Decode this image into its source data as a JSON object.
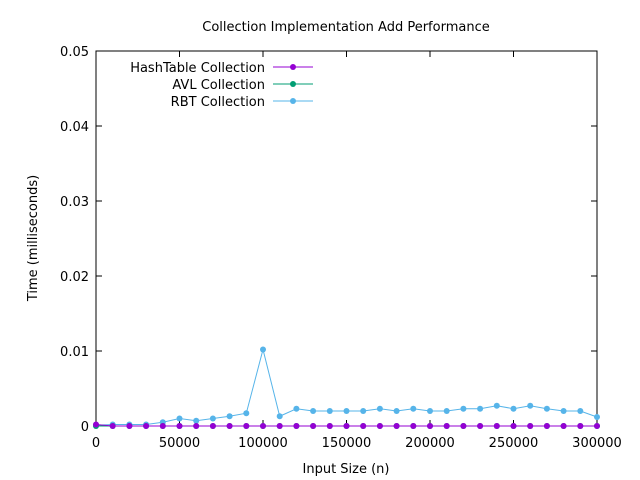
{
  "chart_data": {
    "type": "line",
    "title": "Collection Implementation Add Performance",
    "xlabel": "Input Size (n)",
    "ylabel": "Time (milliseconds)",
    "xlim": [
      0,
      300000
    ],
    "ylim": [
      0,
      0.05
    ],
    "xticks": [
      0,
      50000,
      100000,
      150000,
      200000,
      250000,
      300000
    ],
    "xtick_labels": [
      "0",
      "50000",
      "100000",
      "150000",
      "200000",
      "250000",
      "300000"
    ],
    "yticks": [
      0,
      0.01,
      0.02,
      0.03,
      0.04,
      0.05
    ],
    "ytick_labels": [
      "0",
      "0.01",
      "0.02",
      "0.03",
      "0.04",
      "0.05"
    ],
    "grid": false,
    "legend_position": "top-left",
    "x": [
      0,
      10000,
      20000,
      30000,
      40000,
      50000,
      60000,
      70000,
      80000,
      90000,
      100000,
      110000,
      120000,
      130000,
      140000,
      150000,
      160000,
      170000,
      180000,
      190000,
      200000,
      210000,
      220000,
      230000,
      240000,
      250000,
      260000,
      270000,
      280000,
      290000,
      300000
    ],
    "series": [
      {
        "name": "HashTable Collection",
        "color": "#9400d3",
        "values": [
          0.0002,
          0,
          0,
          0,
          0,
          0,
          0,
          0,
          0,
          0,
          0,
          0,
          0,
          0,
          0,
          0,
          0,
          0,
          0,
          0,
          0,
          0,
          0,
          0,
          0,
          0,
          0,
          0,
          0,
          0,
          0
        ]
      },
      {
        "name": "AVL Collection",
        "color": "#009e73",
        "values": [
          0,
          0,
          0,
          0,
          0,
          0,
          0,
          0,
          0,
          0,
          0,
          0,
          0,
          0,
          0,
          0,
          0,
          0,
          0,
          0,
          0,
          0,
          0,
          0,
          0,
          0,
          0,
          0,
          0,
          0,
          0
        ]
      },
      {
        "name": "RBT Collection",
        "color": "#56b4e9",
        "values": [
          0.0001,
          0.0002,
          0.0002,
          0.0002,
          0.0005,
          0.001,
          0.0007,
          0.001,
          0.0013,
          0.0017,
          0.0102,
          0.0013,
          0.0023,
          0.002,
          0.002,
          0.002,
          0.002,
          0.0023,
          0.002,
          0.0023,
          0.002,
          0.002,
          0.0023,
          0.0023,
          0.0027,
          0.0023,
          0.0027,
          0.0023,
          0.002,
          0.002,
          0.0012
        ]
      }
    ]
  }
}
